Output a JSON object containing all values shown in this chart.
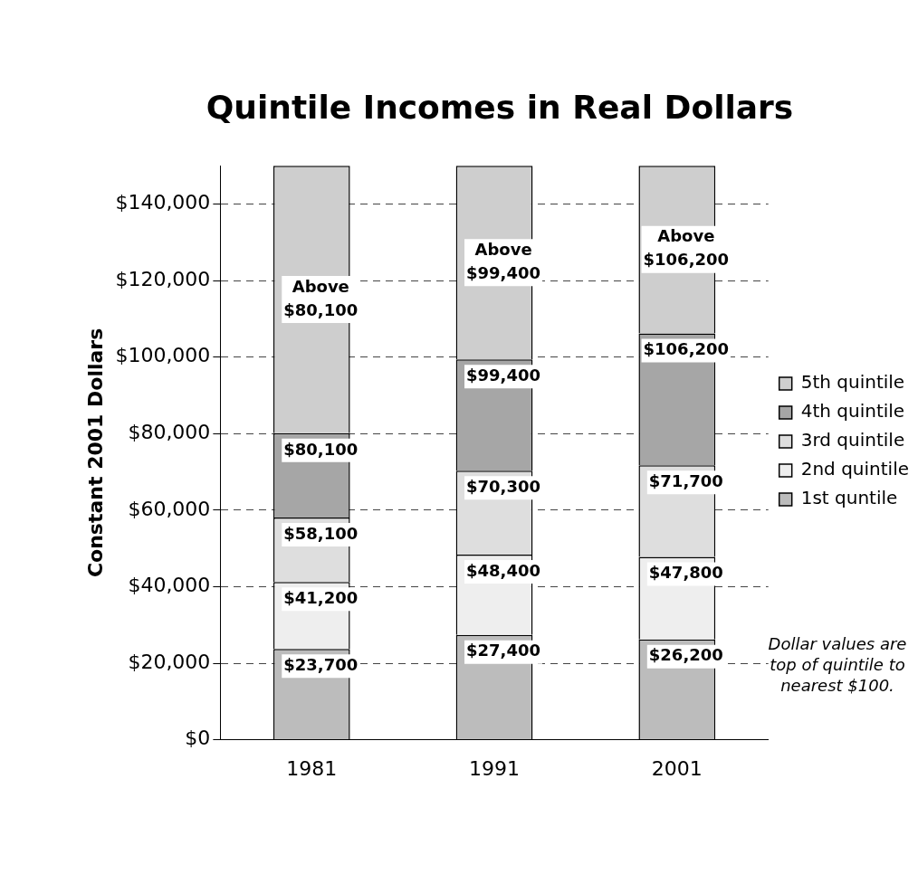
{
  "chart_data": {
    "type": "bar",
    "title": "Quintile Incomes in Real Dollars",
    "ylabel": "Constant 2001 Dollars",
    "categories": [
      "1981",
      "1991",
      "2001"
    ],
    "stacked": true,
    "series": [
      {
        "name": "1st quntile",
        "color": "#bcbcbc",
        "values": [
          23700,
          27400,
          26200
        ]
      },
      {
        "name": "2nd quintile",
        "color": "#eeeeee",
        "values": [
          17500,
          21000,
          21600
        ]
      },
      {
        "name": "3rd quintile",
        "color": "#dedede",
        "values": [
          16900,
          21900,
          23900
        ]
      },
      {
        "name": "4th quintile",
        "color": "#a6a6a6",
        "values": [
          22000,
          29100,
          34500
        ]
      },
      {
        "name": "5th quintile",
        "color": "#cecece",
        "values": [
          69900,
          50600,
          43800
        ]
      }
    ],
    "ylim": [
      0,
      150000
    ],
    "yticks": [
      {
        "value": 0,
        "label": "$0"
      },
      {
        "value": 20000,
        "label": "$20,000"
      },
      {
        "value": 40000,
        "label": "$40,000"
      },
      {
        "value": 60000,
        "label": "$60,000"
      },
      {
        "value": 80000,
        "label": "$80,000"
      },
      {
        "value": 100000,
        "label": "$100,000"
      },
      {
        "value": 120000,
        "label": "$120,000"
      },
      {
        "value": 140000,
        "label": "$140,000"
      }
    ],
    "grid": "y",
    "legend": "right",
    "annotations": [
      {
        "text": "$23,700",
        "x": "1981",
        "y": 23700
      },
      {
        "text": "$41,200",
        "x": "1981",
        "y": 41200
      },
      {
        "text": "$58,100",
        "x": "1981",
        "y": 58100
      },
      {
        "text": "$80,100",
        "x": "1981",
        "y": 80100
      },
      "Above $80,100",
      {
        "text": "$27,400",
        "x": "1991",
        "y": 27400
      },
      {
        "text": "$48,400",
        "x": "1991",
        "y": 48400
      },
      {
        "text": "$70,300",
        "x": "1991",
        "y": 70300
      },
      {
        "text": "$99,400",
        "x": "1991",
        "y": 99400
      },
      "Above $99,400",
      {
        "text": "$26,200",
        "x": "2001",
        "y": 26200
      },
      {
        "text": "$47,800",
        "x": "2001",
        "y": 47800
      },
      {
        "text": "$71,700",
        "x": "2001",
        "y": 71700
      },
      {
        "text": "$106,200",
        "x": "2001",
        "y": 106200
      },
      "Above $106,200",
      "Dollar values are top of quintile to nearest $100."
    ]
  }
}
